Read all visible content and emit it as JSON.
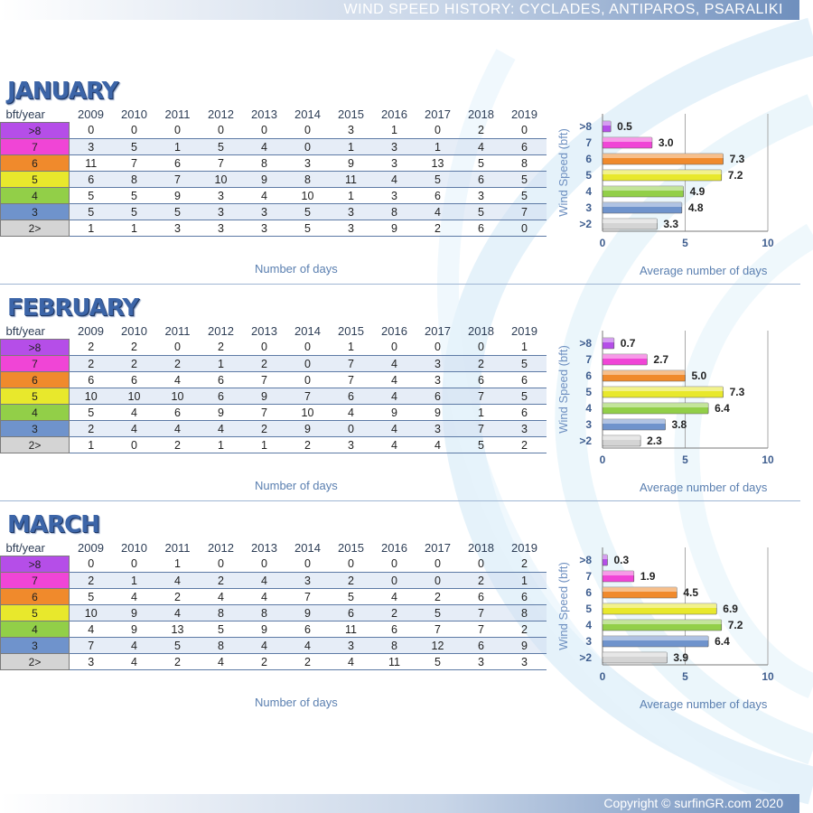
{
  "header": {
    "title": "WIND SPEED HISTORY: CYCLADES, ANTIPAROS, PSARALIKI"
  },
  "footer": {
    "copyright": "Copyright © surfinGR.com 2020"
  },
  "colors": {
    "accent": "#3c65a8",
    "bft_levels": [
      "#b54ee8",
      "#f045d6",
      "#f08a2c",
      "#e8e82c",
      "#92cf48",
      "#6f93cc",
      "#d4d4d4"
    ]
  },
  "table_labels": {
    "corner": "bft/year",
    "years": [
      "2009",
      "2010",
      "2011",
      "2012",
      "2013",
      "2014",
      "2015",
      "2016",
      "2017",
      "2018",
      "2019"
    ],
    "rows": [
      ">8",
      "7",
      "6",
      "5",
      "4",
      "3",
      "2>"
    ],
    "x_caption": "Number of days"
  },
  "months": [
    {
      "name": "JANUARY",
      "table": [
        [
          "0",
          "0",
          "0",
          "0",
          "0",
          "0",
          "3",
          "1",
          "0",
          "2",
          "0"
        ],
        [
          "3",
          "5",
          "1",
          "5",
          "4",
          "0",
          "1",
          "3",
          "1",
          "4",
          "6"
        ],
        [
          "11",
          "7",
          "6",
          "7",
          "8",
          "3",
          "9",
          "3",
          "13",
          "5",
          "8"
        ],
        [
          "6",
          "8",
          "7",
          "10",
          "9",
          "8",
          "11",
          "4",
          "5",
          "6",
          "5"
        ],
        [
          "5",
          "5",
          "9",
          "3",
          "4",
          "10",
          "1",
          "3",
          "6",
          "3",
          "5"
        ],
        [
          "5",
          "5",
          "5",
          "3",
          "3",
          "5",
          "3",
          "8",
          "4",
          "5",
          "7"
        ],
        [
          "1",
          "1",
          "3",
          "3",
          "3",
          "5",
          "3",
          "9",
          "2",
          "6",
          "0"
        ]
      ]
    },
    {
      "name": "FEBRUARY",
      "table": [
        [
          "2",
          "2",
          "0",
          "2",
          "0",
          "0",
          "1",
          "0",
          "0",
          "0",
          "1"
        ],
        [
          "2",
          "2",
          "2",
          "1",
          "2",
          "0",
          "7",
          "4",
          "3",
          "2",
          "5"
        ],
        [
          "6",
          "6",
          "4",
          "6",
          "7",
          "0",
          "7",
          "4",
          "3",
          "6",
          "6"
        ],
        [
          "10",
          "10",
          "10",
          "6",
          "9",
          "7",
          "6",
          "4",
          "6",
          "7",
          "5"
        ],
        [
          "5",
          "4",
          "6",
          "9",
          "7",
          "10",
          "4",
          "9",
          "9",
          "1",
          "6"
        ],
        [
          "2",
          "4",
          "4",
          "4",
          "2",
          "9",
          "0",
          "4",
          "3",
          "7",
          "3"
        ],
        [
          "1",
          "0",
          "2",
          "1",
          "1",
          "2",
          "3",
          "4",
          "4",
          "5",
          "2"
        ]
      ]
    },
    {
      "name": "MARCH",
      "table": [
        [
          "0",
          "0",
          "1",
          "0",
          "0",
          "0",
          "0",
          "0",
          "0",
          "0",
          "2"
        ],
        [
          "2",
          "1",
          "4",
          "2",
          "4",
          "3",
          "2",
          "0",
          "0",
          "2",
          "1"
        ],
        [
          "5",
          "4",
          "2",
          "4",
          "4",
          "7",
          "5",
          "4",
          "2",
          "6",
          "6"
        ],
        [
          "10",
          "9",
          "4",
          "8",
          "8",
          "9",
          "6",
          "2",
          "5",
          "7",
          "8"
        ],
        [
          "4",
          "9",
          "13",
          "5",
          "9",
          "6",
          "11",
          "6",
          "7",
          "7",
          "2"
        ],
        [
          "7",
          "4",
          "5",
          "8",
          "4",
          "4",
          "3",
          "8",
          "12",
          "6",
          "9"
        ],
        [
          "3",
          "4",
          "2",
          "4",
          "2",
          "2",
          "4",
          "11",
          "5",
          "3",
          "3"
        ]
      ]
    }
  ],
  "chart_data": [
    {
      "type": "bar",
      "orientation": "horizontal",
      "categories": [
        ">8",
        "7",
        "6",
        "5",
        "4",
        "3",
        ">2"
      ],
      "values": [
        0.5,
        3.0,
        7.3,
        7.2,
        4.9,
        4.8,
        3.3
      ],
      "value_labels": [
        "0.5",
        "3.0",
        "7.3",
        "7.2",
        "4.9",
        "4.8",
        "3.3"
      ],
      "xlabel": "Average number of days",
      "ylabel": "Wind Speed (bft)",
      "xlim": [
        0,
        10
      ],
      "xticks": [
        "0",
        "5",
        "10"
      ]
    },
    {
      "type": "bar",
      "orientation": "horizontal",
      "categories": [
        ">8",
        "7",
        "6",
        "5",
        "4",
        "3",
        ">2"
      ],
      "values": [
        0.7,
        2.7,
        5.0,
        7.3,
        6.4,
        3.8,
        2.3
      ],
      "value_labels": [
        "0.7",
        "2.7",
        "5.0",
        "7.3",
        "6.4",
        "3.8",
        "2.3"
      ],
      "xlabel": "Average number of days",
      "ylabel": "Wind Speed (bft)",
      "xlim": [
        0,
        10
      ],
      "xticks": [
        "0",
        "5",
        "10"
      ]
    },
    {
      "type": "bar",
      "orientation": "horizontal",
      "categories": [
        ">8",
        "7",
        "6",
        "5",
        "4",
        "3",
        ">2"
      ],
      "values": [
        0.3,
        1.9,
        4.5,
        6.9,
        7.2,
        6.4,
        3.9
      ],
      "value_labels": [
        "0.3",
        "1.9",
        "4.5",
        "6.9",
        "7.2",
        "6.4",
        "3.9"
      ],
      "xlabel": "Average number of days",
      "ylabel": "Wind Speed (bft)",
      "xlim": [
        0,
        10
      ],
      "xticks": [
        "0",
        "5",
        "10"
      ]
    }
  ]
}
